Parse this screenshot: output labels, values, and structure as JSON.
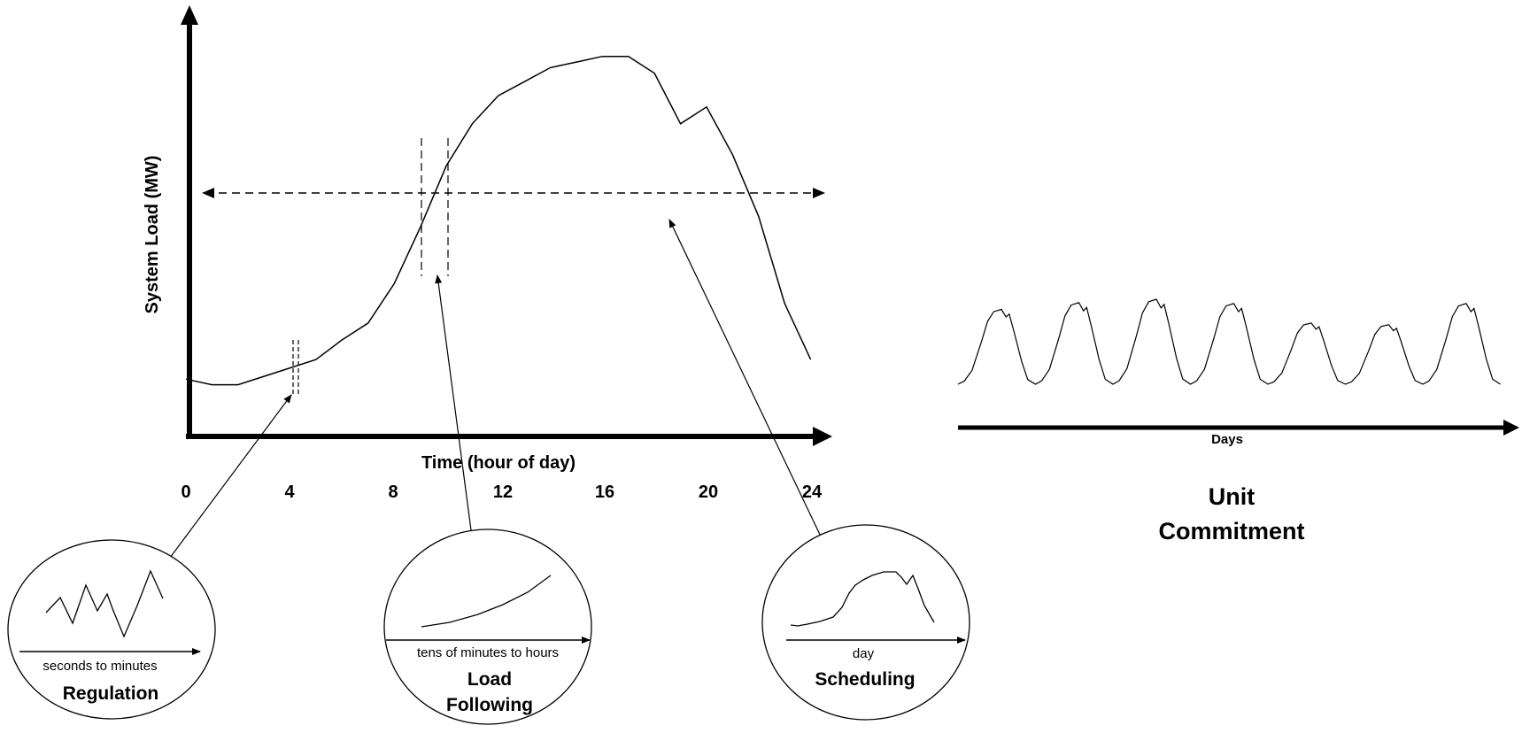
{
  "main_chart": {
    "y_axis_label": "System Load (MW)",
    "x_axis_label": "Time (hour of day)",
    "x_ticks": [
      "0",
      "4",
      "8",
      "12",
      "16",
      "20",
      "24"
    ],
    "load_profile": {
      "hours": [
        0,
        1,
        2,
        3,
        4,
        5,
        6,
        7,
        8,
        9,
        10,
        11,
        12,
        13,
        14,
        15,
        16,
        17,
        18,
        19,
        20,
        21,
        22,
        23,
        24
      ],
      "relative_load": [
        0.16,
        0.14,
        0.14,
        0.17,
        0.2,
        0.23,
        0.3,
        0.36,
        0.5,
        0.7,
        0.92,
        1.07,
        1.17,
        1.22,
        1.27,
        1.29,
        1.31,
        1.31,
        1.25,
        1.07,
        1.13,
        0.96,
        0.74,
        0.43,
        0.23
      ]
    }
  },
  "insets": [
    {
      "caption": "seconds to minutes",
      "title_lines": [
        "Regulation"
      ]
    },
    {
      "caption": "tens of minutes to hours",
      "title_lines": [
        "Load",
        "Following"
      ]
    },
    {
      "caption": "day",
      "title_lines": [
        "Scheduling"
      ]
    }
  ],
  "unit_commitment": {
    "axis_label": "Days",
    "title_lines": [
      "Unit",
      "Commitment"
    ],
    "days": 7
  },
  "colors": {
    "stroke": "#000000",
    "background": "#ffffff"
  }
}
